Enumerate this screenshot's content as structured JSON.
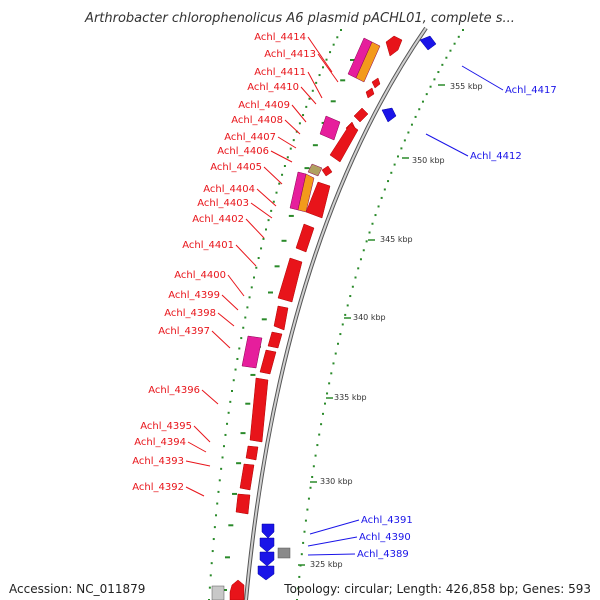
{
  "title": "Arthrobacter chlorophenolicus A6 plasmid pACHL01, complete s...",
  "footer": {
    "accession": "Accession: NC_011879",
    "topology": "Topology: circular; Length: 426,858 bp; Genes: 593"
  },
  "colors": {
    "forward": "#e8141a",
    "reverse": "#1a14e8",
    "magenta": "#e61e9c",
    "orange": "#f39a1c",
    "grey": "#8a8a8a",
    "olive": "#b0a060",
    "backbone": "#8c8c8c",
    "tick": "#2a8a2a"
  },
  "map": {
    "tick_labels": [
      "325 kbp",
      "330 kbp",
      "335 kbp",
      "340 kbp",
      "345 kbp",
      "350 kbp",
      "355 kbp"
    ]
  },
  "genes_forward": [
    "Achl_4414",
    "Achl_4413",
    "Achl_4411",
    "Achl_4410",
    "Achl_4409",
    "Achl_4408",
    "Achl_4407",
    "Achl_4406",
    "Achl_4405",
    "Achl_4404",
    "Achl_4403",
    "Achl_4402",
    "Achl_4401",
    "Achl_4400",
    "Achl_4399",
    "Achl_4398",
    "Achl_4397",
    "Achl_4396",
    "Achl_4395",
    "Achl_4394",
    "Achl_4393",
    "Achl_4392"
  ],
  "genes_reverse": [
    "Achl_4417",
    "Achl_4412",
    "Achl_4391",
    "Achl_4390",
    "Achl_4389"
  ]
}
